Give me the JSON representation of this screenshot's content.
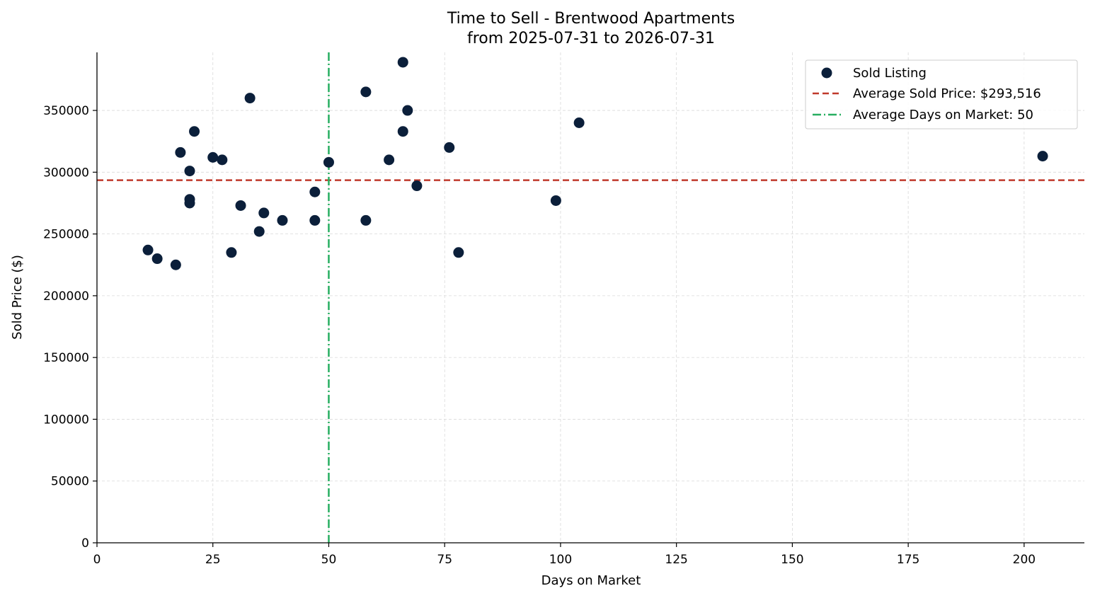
{
  "chart_data": {
    "type": "scatter",
    "title_line1": "Time to Sell - Brentwood Apartments",
    "title_line2": "from 2025-07-31 to 2026-07-31",
    "xlabel": "Days on Market",
    "ylabel": "Sold Price ($)",
    "xlim": [
      0,
      213
    ],
    "ylim": [
      0,
      397000
    ],
    "xticks": [
      0,
      25,
      50,
      75,
      100,
      125,
      150,
      175,
      200
    ],
    "yticks": [
      0,
      50000,
      100000,
      150000,
      200000,
      250000,
      300000,
      350000
    ],
    "grid": true,
    "legend_position": "top-right",
    "series": [
      {
        "name": "Sold Listing",
        "color": "#0b1f3a",
        "x": [
          11,
          13,
          17,
          18,
          20,
          20,
          20,
          21,
          25,
          27,
          29,
          31,
          33,
          35,
          36,
          40,
          47,
          47,
          50,
          58,
          58,
          63,
          66,
          66,
          67,
          69,
          76,
          78,
          99,
          104,
          204
        ],
        "y": [
          237000,
          230000,
          225000,
          316000,
          301000,
          278000,
          275000,
          333000,
          312000,
          310000,
          235000,
          273000,
          360000,
          252000,
          267000,
          261000,
          284000,
          261000,
          308000,
          365000,
          261000,
          310000,
          389000,
          333000,
          350000,
          289000,
          320000,
          235000,
          277000,
          340000,
          313000
        ]
      }
    ],
    "reference_lines": [
      {
        "orientation": "horizontal",
        "value": 293516,
        "label": "Average Sold Price: $293,516",
        "color": "#c0392b",
        "style": "dashed"
      },
      {
        "orientation": "vertical",
        "value": 50,
        "label": "Average Days on Market: 50",
        "color": "#27ae60",
        "style": "dashdot"
      }
    ]
  }
}
